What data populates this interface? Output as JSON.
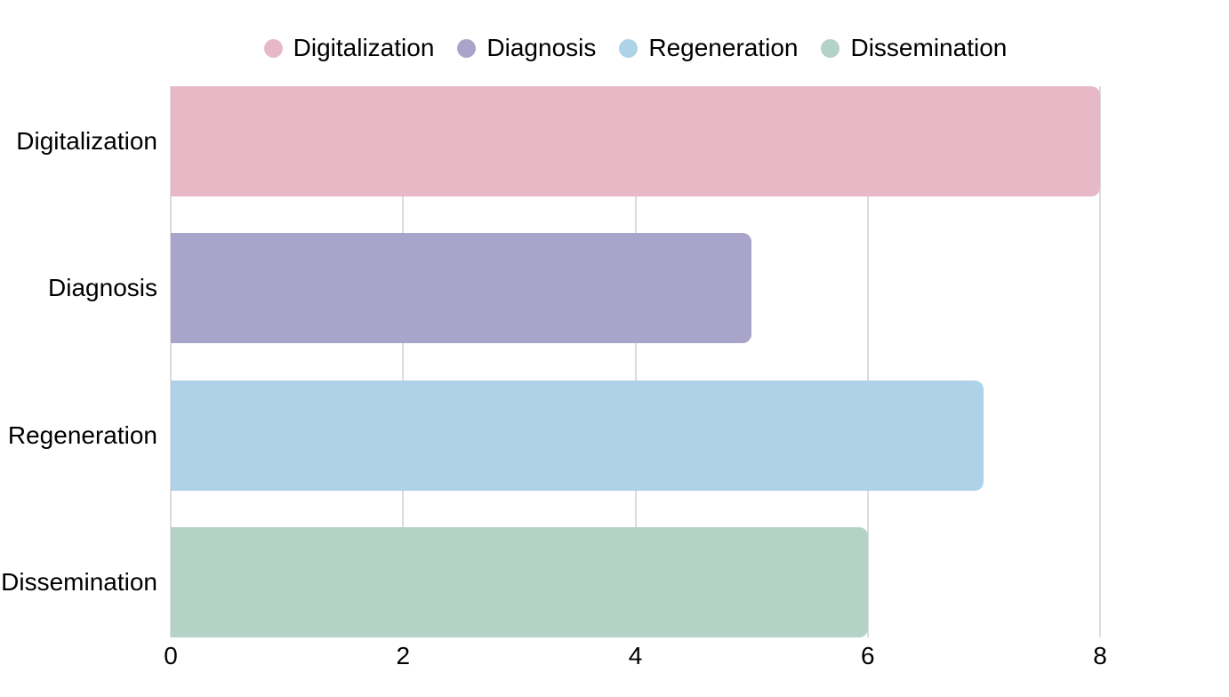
{
  "chart_data": {
    "type": "bar",
    "orientation": "horizontal",
    "title": "",
    "xlabel": "",
    "ylabel": "",
    "categories": [
      "Digitalization",
      "Diagnosis",
      "Regeneration",
      "Dissemination"
    ],
    "values": [
      8,
      5,
      7,
      6
    ],
    "bar_colors": [
      "#e7b9c7",
      "#a9a4c9",
      "#aed2e8",
      "#b5d2c6"
    ],
    "xlim": [
      0,
      8
    ],
    "x_ticks": [
      "0",
      "2",
      "4",
      "6",
      "8"
    ],
    "x_tick_values": [
      0,
      2,
      4,
      6,
      8
    ],
    "grid": "vertical-only",
    "legend_position": "top-center",
    "legend": [
      {
        "label": "Digitalization",
        "color": "#e7b9c7"
      },
      {
        "label": "Diagnosis",
        "color": "#a9a4c9"
      },
      {
        "label": "Regeneration",
        "color": "#aed2e8"
      },
      {
        "label": "Dissemination",
        "color": "#b5d2c6"
      }
    ]
  },
  "colors": {
    "background": "#ffffff",
    "gridline": "#dcdcdc",
    "text": "#000000"
  }
}
